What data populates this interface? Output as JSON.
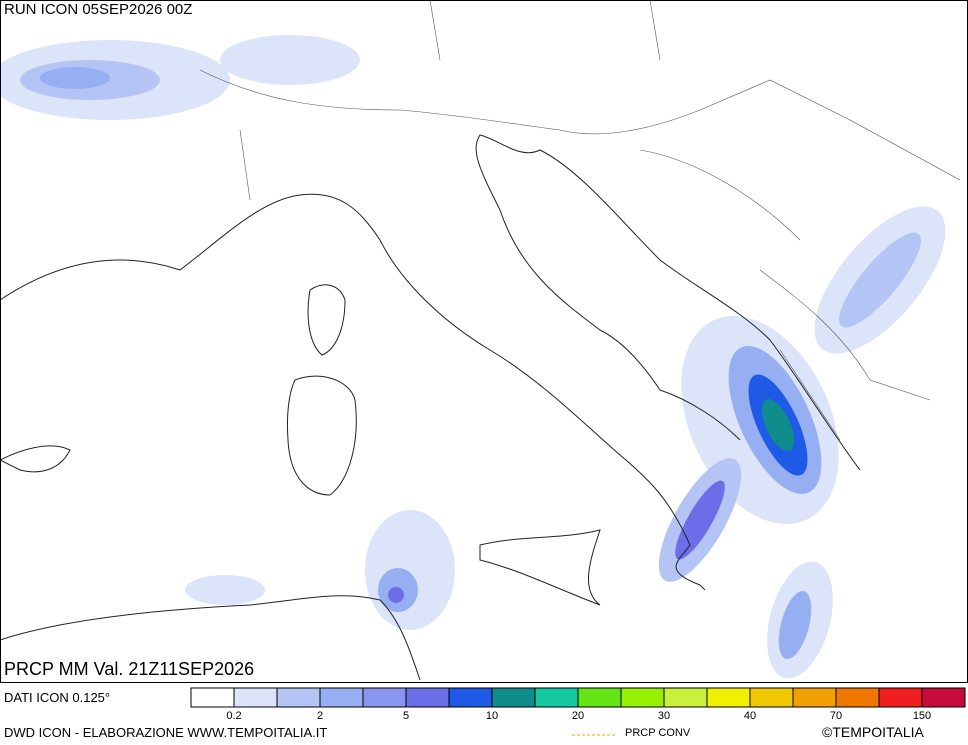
{
  "header": {
    "run": "RUN ICON 05SEP2026 00Z",
    "field": "PRCP MM Val. 21Z11SEP2026"
  },
  "legend": {
    "source": "DATI ICON 0.125°",
    "colors": [
      "#ffffff",
      "#dce4fa",
      "#b4c4f5",
      "#96aff2",
      "#8896f0",
      "#6c6ee8",
      "#1e5ae6",
      "#0f8c8c",
      "#14c8a0",
      "#64e614",
      "#96f000",
      "#c8f03c",
      "#f0f000",
      "#f0c800",
      "#f0a000",
      "#f07800",
      "#f01e1e",
      "#c80a3c"
    ],
    "labels": [
      "0.2",
      "2",
      "5",
      "10",
      "20",
      "30",
      "40",
      "70",
      "150"
    ]
  },
  "footer": {
    "credit": "DWD ICON - ELABORAZIONE WWW.TEMPOITALIA.IT",
    "conv": "PRCP CONV",
    "copyright": "©TEMPOITALIA"
  }
}
